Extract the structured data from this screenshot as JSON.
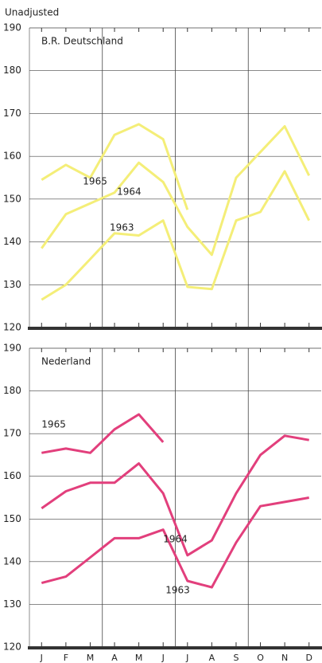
{
  "header": "Unadjusted",
  "chart_data": [
    {
      "type": "line",
      "title": "B.R. Deutschland",
      "ylim": [
        120,
        190
      ],
      "yticks": [
        120,
        130,
        140,
        150,
        160,
        170,
        180,
        190
      ],
      "grid": true,
      "annotations": [
        "1965",
        "1964",
        "1963"
      ],
      "series": [
        {
          "name": "1965",
          "color": "#f4ee78",
          "values": [
            154.5,
            158,
            155,
            165,
            167.5,
            164,
            147.5,
            null,
            null,
            null,
            null,
            null
          ]
        },
        {
          "name": "1964",
          "color": "#f4ee78",
          "values": [
            138.5,
            146.5,
            149,
            151.5,
            158.5,
            154,
            143.5,
            137,
            155,
            161,
            167,
            155.5
          ]
        },
        {
          "name": "1963",
          "color": "#f4ee78",
          "values": [
            126.5,
            130,
            136,
            142,
            141.5,
            145,
            129.5,
            129,
            145,
            147,
            156.5,
            145
          ]
        }
      ]
    },
    {
      "type": "line",
      "title": "Nederland",
      "categories": [
        "J",
        "F",
        "M",
        "A",
        "M",
        "J",
        "J",
        "A",
        "S",
        "O",
        "N",
        "D"
      ],
      "ylim": [
        120,
        190
      ],
      "yticks": [
        120,
        130,
        140,
        150,
        160,
        170,
        180,
        190
      ],
      "grid": true,
      "annotations": [
        "1965",
        "1964",
        "1963"
      ],
      "series": [
        {
          "name": "1965",
          "color": "#e23f7c",
          "values": [
            165.5,
            166.5,
            165.5,
            171,
            174.5,
            168,
            null,
            null,
            null,
            null,
            null,
            null
          ]
        },
        {
          "name": "1964",
          "color": "#e23f7c",
          "values": [
            152.5,
            156.5,
            158.5,
            158.5,
            163,
            156,
            141.5,
            145,
            156,
            165,
            169.5,
            168.5
          ]
        },
        {
          "name": "1963",
          "color": "#e23f7c",
          "values": [
            135,
            136.5,
            141,
            145.5,
            145.5,
            147.5,
            135.5,
            134,
            144.5,
            153,
            154,
            155
          ]
        }
      ]
    }
  ]
}
